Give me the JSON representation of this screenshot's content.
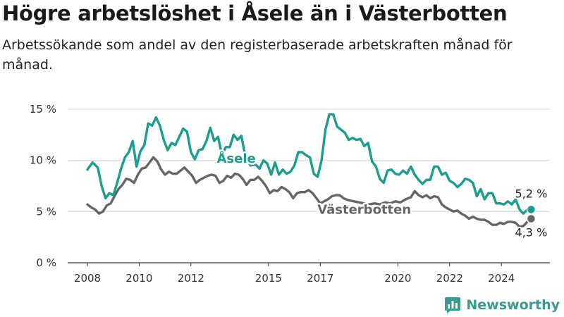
{
  "title": "Högre arbetslöshet i Åsele än i Västerbotten",
  "subtitle": "Arbetssökande som andel av den registerbaserade arbetskraften månad för månad.",
  "brand": {
    "name": "Newsworthy",
    "color": "#3a9a8f"
  },
  "colors": {
    "asele": "#1a9e8f",
    "vasterbotten": "#666666",
    "grid": "#d9d9d9",
    "axis": "#333333"
  },
  "chart_data": {
    "type": "line",
    "title": "Högre arbetslöshet i Åsele än i Västerbotten",
    "subtitle": "Arbetssökande som andel av den registerbaserade arbetskraften månad för månad.",
    "x_unit": "year (decimal, monthly data)",
    "y_unit": "%",
    "xlim": [
      2007.6,
      2025.8
    ],
    "ylim": [
      0,
      15
    ],
    "x_ticks": [
      2008,
      2010,
      2012,
      2015,
      2017,
      2020,
      2022,
      2024
    ],
    "x_tick_labels": [
      "2008",
      "2010",
      "2012",
      "2015",
      "2017",
      "2020",
      "2022",
      "2024"
    ],
    "y_ticks": [
      0,
      5,
      10,
      15
    ],
    "y_tick_labels": [
      "0 %",
      "5 %",
      "10 %",
      "15 %"
    ],
    "grid": "horizontal",
    "legend": "inline labels",
    "series": [
      {
        "name": "Åsele",
        "color": "#1a9e8f",
        "end_label": "5,2 %",
        "points": [
          [
            2008.0,
            9.1
          ],
          [
            2008.2,
            9.8
          ],
          [
            2008.4,
            9.3
          ],
          [
            2008.55,
            7.5
          ],
          [
            2008.7,
            6.3
          ],
          [
            2008.85,
            6.8
          ],
          [
            2009.0,
            6.6
          ],
          [
            2009.15,
            7.8
          ],
          [
            2009.3,
            9.2
          ],
          [
            2009.45,
            10.3
          ],
          [
            2009.6,
            10.8
          ],
          [
            2009.75,
            11.9
          ],
          [
            2009.9,
            9.4
          ],
          [
            2010.05,
            10.9
          ],
          [
            2010.2,
            11.5
          ],
          [
            2010.35,
            13.6
          ],
          [
            2010.5,
            13.4
          ],
          [
            2010.65,
            14.2
          ],
          [
            2010.8,
            13.4
          ],
          [
            2010.95,
            12.0
          ],
          [
            2011.1,
            11.0
          ],
          [
            2011.25,
            11.7
          ],
          [
            2011.4,
            11.5
          ],
          [
            2011.55,
            12.3
          ],
          [
            2011.7,
            13.1
          ],
          [
            2011.85,
            12.8
          ],
          [
            2012.0,
            10.8
          ],
          [
            2012.15,
            10.1
          ],
          [
            2012.3,
            11.0
          ],
          [
            2012.45,
            11.1
          ],
          [
            2012.6,
            11.9
          ],
          [
            2012.75,
            13.2
          ],
          [
            2012.9,
            11.9
          ],
          [
            2013.05,
            12.3
          ],
          [
            2013.2,
            10.5
          ],
          [
            2013.35,
            11.3
          ],
          [
            2013.5,
            11.3
          ],
          [
            2013.65,
            12.5
          ],
          [
            2013.8,
            12.0
          ],
          [
            2013.95,
            12.4
          ],
          [
            2014.1,
            10.4
          ],
          [
            2014.3,
            9.5
          ],
          [
            2014.5,
            9.6
          ],
          [
            2014.65,
            9.2
          ],
          [
            2014.8,
            10.0
          ],
          [
            2014.95,
            9.7
          ],
          [
            2015.1,
            8.6
          ],
          [
            2015.25,
            9.8
          ],
          [
            2015.4,
            8.6
          ],
          [
            2015.55,
            9.1
          ],
          [
            2015.7,
            8.7
          ],
          [
            2015.85,
            8.9
          ],
          [
            2016.0,
            9.5
          ],
          [
            2016.15,
            10.8
          ],
          [
            2016.3,
            10.8
          ],
          [
            2016.45,
            10.5
          ],
          [
            2016.6,
            10.3
          ],
          [
            2016.75,
            8.7
          ],
          [
            2016.9,
            8.4
          ],
          [
            2017.05,
            10.0
          ],
          [
            2017.2,
            13.0
          ],
          [
            2017.35,
            14.5
          ],
          [
            2017.5,
            14.5
          ],
          [
            2017.65,
            13.3
          ],
          [
            2017.8,
            13.0
          ],
          [
            2017.95,
            12.7
          ],
          [
            2018.1,
            12.0
          ],
          [
            2018.25,
            12.2
          ],
          [
            2018.4,
            12.0
          ],
          [
            2018.55,
            12.1
          ],
          [
            2018.7,
            11.4
          ],
          [
            2018.85,
            11.7
          ],
          [
            2019.0,
            9.9
          ],
          [
            2019.15,
            9.4
          ],
          [
            2019.3,
            8.2
          ],
          [
            2019.45,
            7.8
          ],
          [
            2019.6,
            9.0
          ],
          [
            2019.75,
            9.1
          ],
          [
            2019.9,
            8.7
          ],
          [
            2020.05,
            8.6
          ],
          [
            2020.2,
            9.0
          ],
          [
            2020.35,
            8.7
          ],
          [
            2020.5,
            9.4
          ],
          [
            2020.65,
            8.6
          ],
          [
            2020.8,
            8.1
          ],
          [
            2020.95,
            7.7
          ],
          [
            2021.1,
            8.1
          ],
          [
            2021.25,
            8.1
          ],
          [
            2021.4,
            9.4
          ],
          [
            2021.55,
            9.4
          ],
          [
            2021.7,
            8.6
          ],
          [
            2021.85,
            8.8
          ],
          [
            2022.0,
            8.0
          ],
          [
            2022.15,
            7.8
          ],
          [
            2022.3,
            7.4
          ],
          [
            2022.45,
            7.7
          ],
          [
            2022.6,
            8.2
          ],
          [
            2022.75,
            8.1
          ],
          [
            2022.9,
            7.8
          ],
          [
            2023.05,
            6.5
          ],
          [
            2023.2,
            7.2
          ],
          [
            2023.35,
            6.2
          ],
          [
            2023.5,
            6.8
          ],
          [
            2023.65,
            6.8
          ],
          [
            2023.8,
            5.8
          ],
          [
            2023.95,
            5.8
          ],
          [
            2024.1,
            5.7
          ],
          [
            2024.25,
            6.0
          ],
          [
            2024.4,
            5.7
          ],
          [
            2024.55,
            6.2
          ],
          [
            2024.7,
            5.2
          ],
          [
            2024.85,
            4.8
          ],
          [
            2025.0,
            5.2
          ],
          [
            2025.15,
            5.2
          ]
        ]
      },
      {
        "name": "Västerbotten",
        "color": "#666666",
        "end_label": "4,3 %",
        "points": [
          [
            2008.0,
            5.7
          ],
          [
            2008.15,
            5.4
          ],
          [
            2008.3,
            5.2
          ],
          [
            2008.45,
            4.8
          ],
          [
            2008.6,
            5.0
          ],
          [
            2008.75,
            5.6
          ],
          [
            2008.9,
            5.8
          ],
          [
            2009.05,
            6.5
          ],
          [
            2009.2,
            7.2
          ],
          [
            2009.35,
            7.6
          ],
          [
            2009.5,
            8.2
          ],
          [
            2009.65,
            8.1
          ],
          [
            2009.8,
            7.8
          ],
          [
            2009.95,
            8.6
          ],
          [
            2010.1,
            9.2
          ],
          [
            2010.25,
            9.3
          ],
          [
            2010.4,
            9.8
          ],
          [
            2010.55,
            10.3
          ],
          [
            2010.7,
            9.9
          ],
          [
            2010.85,
            9.1
          ],
          [
            2011.0,
            8.6
          ],
          [
            2011.15,
            8.9
          ],
          [
            2011.3,
            8.7
          ],
          [
            2011.45,
            8.7
          ],
          [
            2011.6,
            9.0
          ],
          [
            2011.75,
            9.3
          ],
          [
            2011.9,
            8.9
          ],
          [
            2012.05,
            8.5
          ],
          [
            2012.2,
            7.8
          ],
          [
            2012.35,
            8.1
          ],
          [
            2012.5,
            8.3
          ],
          [
            2012.65,
            8.5
          ],
          [
            2012.8,
            8.6
          ],
          [
            2012.95,
            8.5
          ],
          [
            2013.1,
            7.8
          ],
          [
            2013.25,
            8.0
          ],
          [
            2013.4,
            8.5
          ],
          [
            2013.55,
            8.3
          ],
          [
            2013.7,
            8.7
          ],
          [
            2013.85,
            8.6
          ],
          [
            2014.0,
            8.2
          ],
          [
            2014.15,
            7.6
          ],
          [
            2014.3,
            8.1
          ],
          [
            2014.45,
            8.1
          ],
          [
            2014.6,
            8.4
          ],
          [
            2014.75,
            8.0
          ],
          [
            2014.9,
            7.5
          ],
          [
            2015.05,
            6.8
          ],
          [
            2015.2,
            7.1
          ],
          [
            2015.35,
            7.0
          ],
          [
            2015.5,
            7.4
          ],
          [
            2015.65,
            7.2
          ],
          [
            2015.8,
            6.9
          ],
          [
            2015.95,
            6.3
          ],
          [
            2016.1,
            6.8
          ],
          [
            2016.25,
            6.9
          ],
          [
            2016.4,
            6.9
          ],
          [
            2016.55,
            7.1
          ],
          [
            2016.7,
            6.8
          ],
          [
            2016.85,
            6.3
          ],
          [
            2017.0,
            5.8
          ],
          [
            2017.15,
            6.0
          ],
          [
            2017.3,
            6.2
          ],
          [
            2017.45,
            6.5
          ],
          [
            2017.6,
            6.6
          ],
          [
            2017.75,
            6.6
          ],
          [
            2017.9,
            6.3
          ],
          [
            2018.1,
            6.1
          ],
          [
            2018.3,
            6.0
          ],
          [
            2018.5,
            5.9
          ],
          [
            2018.7,
            5.8
          ],
          [
            2018.9,
            5.7
          ],
          [
            2019.1,
            5.8
          ],
          [
            2019.3,
            5.7
          ],
          [
            2019.5,
            5.9
          ],
          [
            2019.7,
            5.8
          ],
          [
            2019.9,
            6.0
          ],
          [
            2020.1,
            5.9
          ],
          [
            2020.3,
            6.2
          ],
          [
            2020.5,
            6.4
          ],
          [
            2020.65,
            7.0
          ],
          [
            2020.8,
            6.6
          ],
          [
            2020.95,
            6.4
          ],
          [
            2021.1,
            6.6
          ],
          [
            2021.25,
            6.3
          ],
          [
            2021.4,
            6.5
          ],
          [
            2021.55,
            6.4
          ],
          [
            2021.7,
            5.7
          ],
          [
            2021.85,
            5.4
          ],
          [
            2022.0,
            5.2
          ],
          [
            2022.15,
            5.0
          ],
          [
            2022.3,
            5.1
          ],
          [
            2022.45,
            4.8
          ],
          [
            2022.6,
            4.6
          ],
          [
            2022.75,
            4.3
          ],
          [
            2022.9,
            4.5
          ],
          [
            2023.05,
            4.3
          ],
          [
            2023.2,
            4.2
          ],
          [
            2023.35,
            4.2
          ],
          [
            2023.5,
            4.0
          ],
          [
            2023.65,
            3.7
          ],
          [
            2023.8,
            3.7
          ],
          [
            2023.95,
            3.9
          ],
          [
            2024.1,
            3.8
          ],
          [
            2024.25,
            4.0
          ],
          [
            2024.4,
            4.0
          ],
          [
            2024.55,
            3.9
          ],
          [
            2024.7,
            3.5
          ],
          [
            2024.85,
            3.6
          ],
          [
            2025.0,
            4.0
          ],
          [
            2025.15,
            4.3
          ]
        ]
      }
    ],
    "inline_labels": [
      {
        "text": "Åsele",
        "series": "Åsele"
      },
      {
        "text": "Västerbotten",
        "series": "Västerbotten"
      }
    ]
  }
}
